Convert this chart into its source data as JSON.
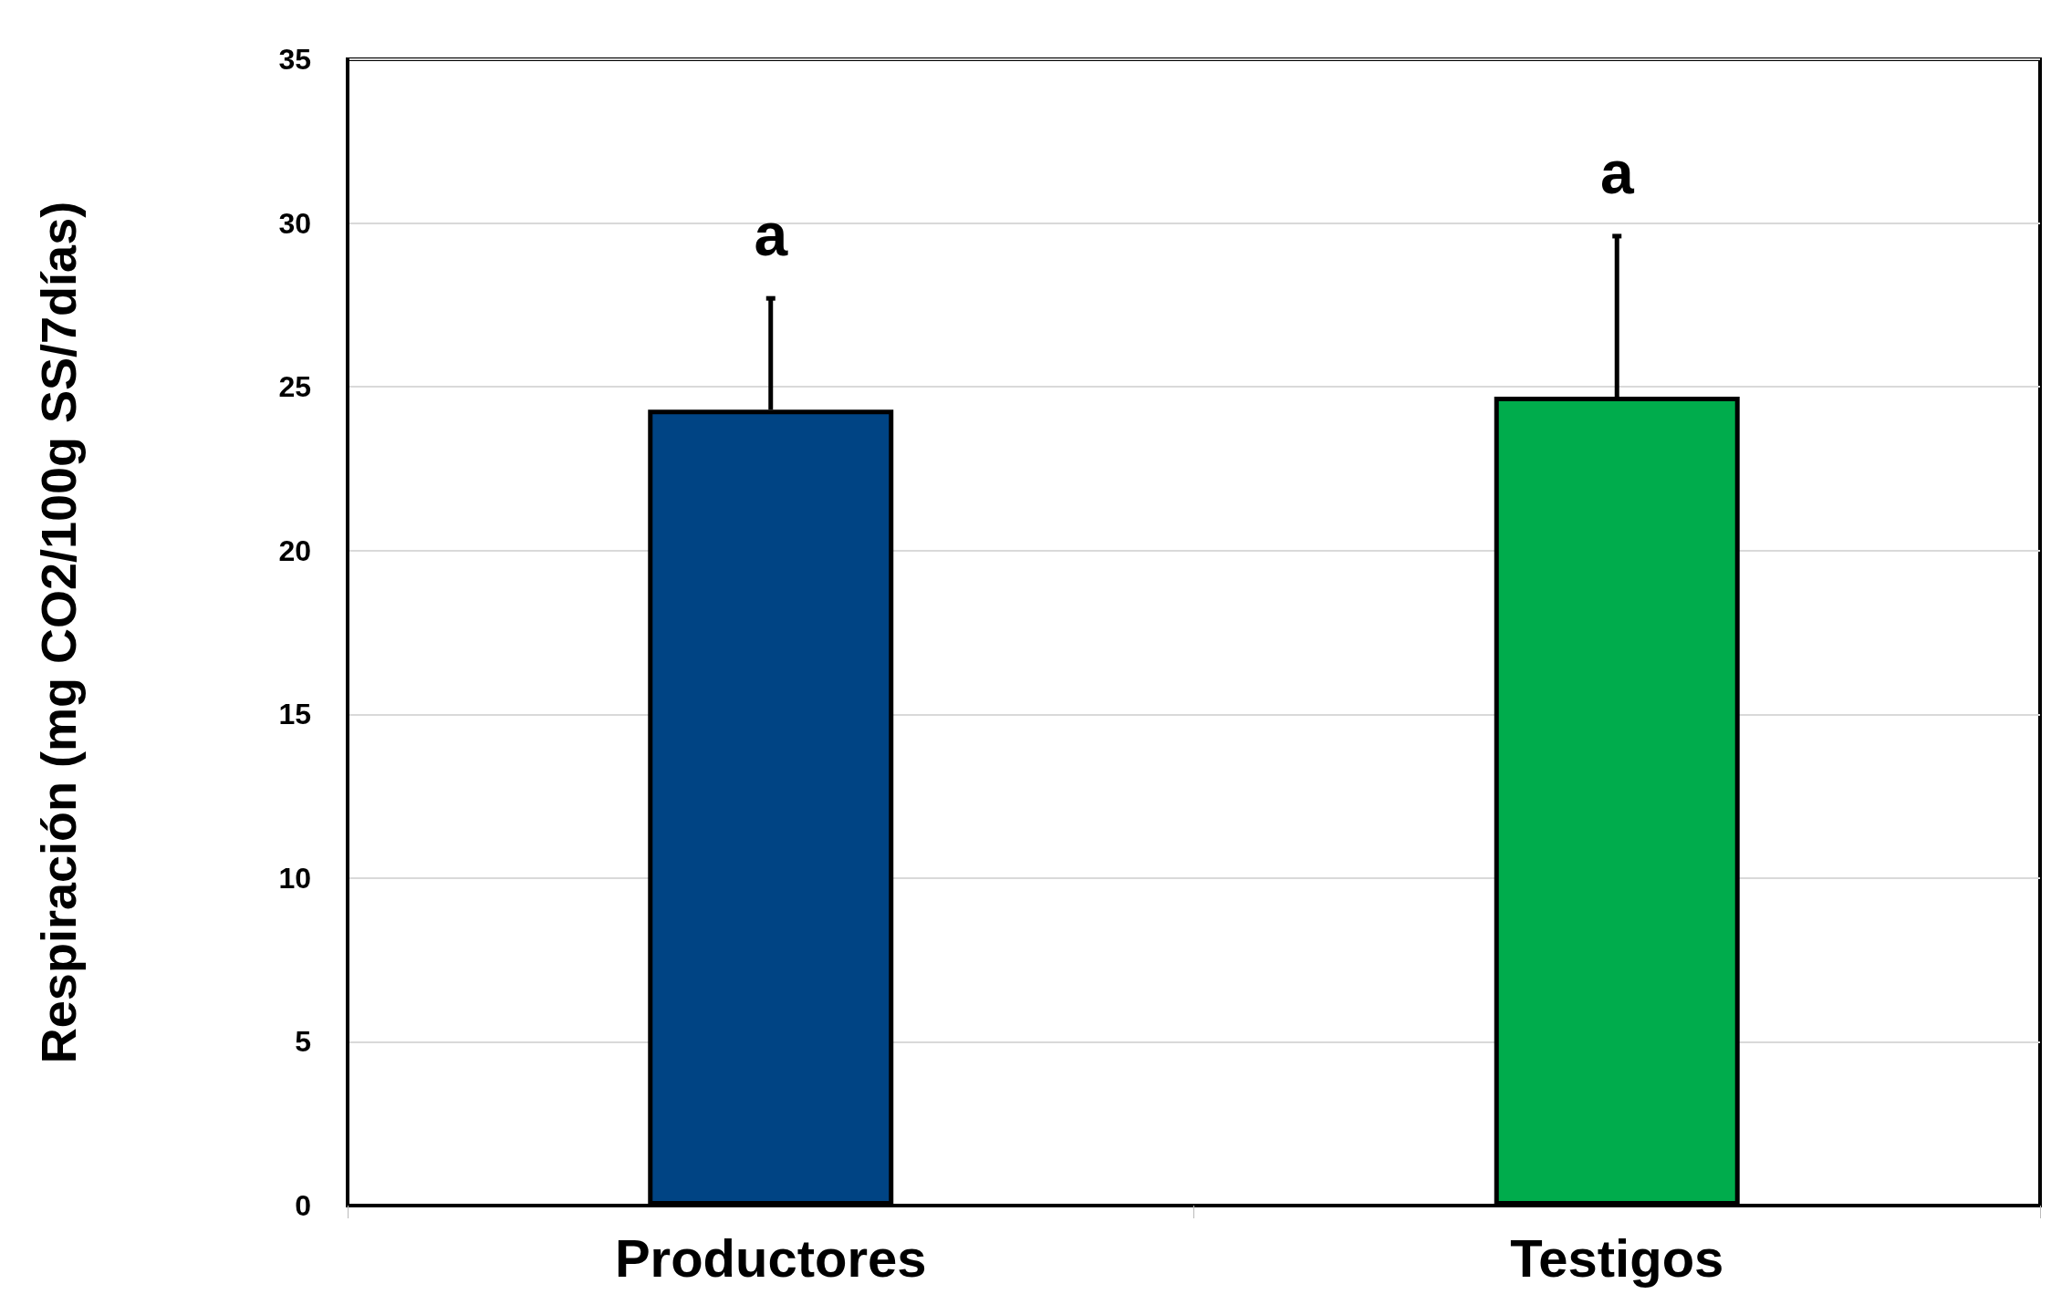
{
  "chart_data": {
    "type": "bar",
    "ylabel": "Respiración (mg CO2/100g SS/7días)",
    "categories": [
      "Productores",
      "Testigos"
    ],
    "values": [
      24.3,
      24.7
    ],
    "colors": [
      "#004484",
      "#00ac4c"
    ],
    "errors": [
      [
        24.3,
        27.7
      ],
      [
        24.7,
        29.6
      ]
    ],
    "ylim": [
      0,
      35
    ],
    "yticks": [
      0,
      5,
      10,
      15,
      20,
      25,
      30,
      35
    ],
    "grid": "y",
    "annotations": [
      "a",
      "a"
    ]
  }
}
